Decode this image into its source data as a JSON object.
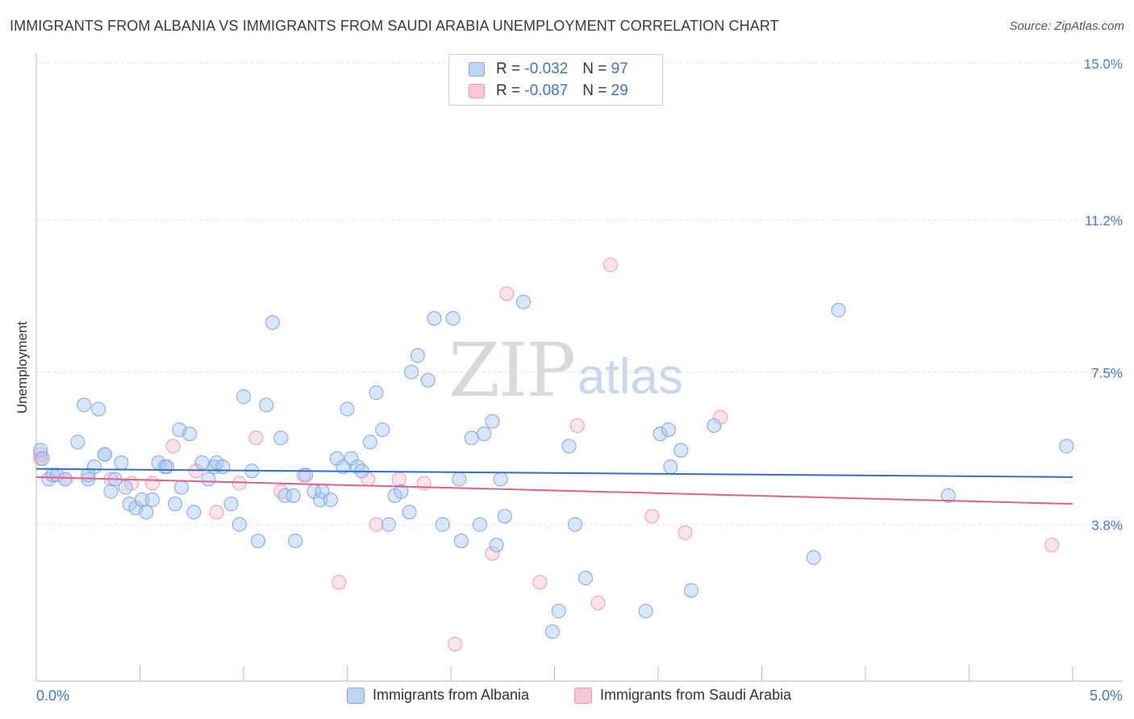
{
  "title": "IMMIGRANTS FROM ALBANIA VS IMMIGRANTS FROM SAUDI ARABIA UNEMPLOYMENT CORRELATION CHART",
  "source": "Source: ZipAtlas.com",
  "watermark": {
    "zip": "ZIP",
    "atlas": "atlas"
  },
  "legend_top": [
    {
      "r_label": "R =",
      "r_value": "-0.032",
      "n_label": "N =",
      "n_value": "97"
    },
    {
      "r_label": "R =",
      "r_value": "-0.087",
      "n_label": "N =",
      "n_value": "29"
    }
  ],
  "chart_data": {
    "type": "scatter",
    "title": "IMMIGRANTS FROM ALBANIA VS IMMIGRANTS FROM SAUDI ARABIA UNEMPLOYMENT CORRELATION CHART",
    "xlabel": "",
    "ylabel": "Unemployment",
    "xlim": [
      0,
      5.0
    ],
    "ylim": [
      0,
      15.0
    ],
    "x_tick_labels": [
      "0.0%",
      "5.0%"
    ],
    "y_ticks": [
      3.8,
      7.5,
      11.2,
      15.0
    ],
    "y_tick_labels": [
      "3.8%",
      "7.5%",
      "11.2%",
      "15.0%"
    ],
    "grid": "horizontal dashed",
    "legend_position": "bottom",
    "colors": {
      "albania": "#a9c7ef",
      "albania_line": "#2f6fcc",
      "saudi": "#f4b8cb",
      "saudi_line": "#e0608c",
      "tick_text": "#4477cc"
    },
    "series": [
      {
        "name": "Immigrants from Albania",
        "R": -0.032,
        "N": 97,
        "trend": {
          "x": [
            0,
            5.0
          ],
          "y": [
            5.15,
            4.95
          ]
        },
        "points": [
          [
            0.02,
            5.6
          ],
          [
            0.03,
            5.4
          ],
          [
            0.06,
            4.9
          ],
          [
            0.08,
            5.0
          ],
          [
            0.1,
            5.0
          ],
          [
            0.14,
            4.9
          ],
          [
            0.2,
            5.8
          ],
          [
            0.23,
            6.7
          ],
          [
            0.25,
            4.9
          ],
          [
            0.28,
            5.2
          ],
          [
            0.3,
            6.6
          ],
          [
            0.33,
            5.5
          ],
          [
            0.36,
            4.6
          ],
          [
            0.38,
            4.9
          ],
          [
            0.41,
            5.3
          ],
          [
            0.43,
            4.7
          ],
          [
            0.45,
            4.3
          ],
          [
            0.48,
            4.2
          ],
          [
            0.51,
            4.4
          ],
          [
            0.53,
            4.1
          ],
          [
            0.56,
            4.4
          ],
          [
            0.59,
            5.3
          ],
          [
            0.62,
            5.2
          ],
          [
            0.63,
            5.2
          ],
          [
            0.67,
            4.3
          ],
          [
            0.69,
            6.1
          ],
          [
            0.7,
            4.7
          ],
          [
            0.74,
            6.0
          ],
          [
            0.76,
            4.1
          ],
          [
            0.8,
            5.3
          ],
          [
            0.83,
            4.9
          ],
          [
            0.86,
            5.2
          ],
          [
            0.87,
            5.3
          ],
          [
            0.9,
            5.2
          ],
          [
            0.94,
            4.3
          ],
          [
            0.98,
            3.8
          ],
          [
            1.0,
            6.9
          ],
          [
            1.04,
            5.1
          ],
          [
            1.07,
            3.4
          ],
          [
            1.11,
            6.7
          ],
          [
            1.14,
            8.7
          ],
          [
            1.18,
            5.9
          ],
          [
            1.2,
            4.5
          ],
          [
            1.24,
            4.5
          ],
          [
            1.25,
            3.4
          ],
          [
            1.3,
            5.0
          ],
          [
            1.34,
            4.6
          ],
          [
            1.37,
            4.4
          ],
          [
            1.38,
            4.6
          ],
          [
            1.42,
            4.4
          ],
          [
            1.45,
            5.4
          ],
          [
            1.48,
            5.2
          ],
          [
            1.5,
            6.6
          ],
          [
            1.52,
            5.4
          ],
          [
            1.55,
            5.2
          ],
          [
            1.57,
            5.1
          ],
          [
            1.61,
            5.8
          ],
          [
            1.64,
            7.0
          ],
          [
            1.67,
            6.1
          ],
          [
            1.7,
            3.8
          ],
          [
            1.73,
            4.5
          ],
          [
            1.76,
            4.6
          ],
          [
            1.8,
            4.1
          ],
          [
            1.81,
            7.5
          ],
          [
            1.84,
            7.9
          ],
          [
            1.89,
            7.3
          ],
          [
            1.92,
            8.8
          ],
          [
            1.96,
            3.8
          ],
          [
            2.01,
            8.8
          ],
          [
            2.04,
            4.9
          ],
          [
            2.05,
            3.4
          ],
          [
            2.1,
            5.9
          ],
          [
            2.14,
            3.8
          ],
          [
            2.16,
            6.0
          ],
          [
            2.2,
            6.3
          ],
          [
            2.22,
            3.3
          ],
          [
            2.24,
            4.9
          ],
          [
            2.26,
            4.0
          ],
          [
            2.35,
            9.2
          ],
          [
            2.49,
            1.2
          ],
          [
            2.52,
            1.7
          ],
          [
            2.57,
            5.7
          ],
          [
            2.6,
            3.8
          ],
          [
            2.65,
            2.5
          ],
          [
            2.94,
            1.7
          ],
          [
            3.01,
            6.0
          ],
          [
            3.05,
            6.1
          ],
          [
            3.06,
            5.2
          ],
          [
            3.11,
            5.6
          ],
          [
            3.16,
            2.2
          ],
          [
            3.27,
            6.2
          ],
          [
            3.75,
            3.0
          ],
          [
            3.87,
            9.0
          ],
          [
            4.4,
            4.5
          ],
          [
            4.97,
            5.7
          ],
          [
            0.25,
            5.0
          ],
          [
            0.33,
            5.5
          ]
        ]
      },
      {
        "name": "Immigrants from Saudi Arabia",
        "R": -0.087,
        "N": 29,
        "trend": {
          "x": [
            0,
            5.0
          ],
          "y": [
            4.95,
            4.3
          ]
        },
        "points": [
          [
            0.02,
            5.4
          ],
          [
            0.14,
            4.9
          ],
          [
            0.36,
            4.9
          ],
          [
            0.46,
            4.8
          ],
          [
            0.56,
            4.8
          ],
          [
            0.66,
            5.7
          ],
          [
            0.77,
            5.1
          ],
          [
            0.87,
            4.1
          ],
          [
            0.98,
            4.8
          ],
          [
            1.06,
            5.9
          ],
          [
            1.18,
            4.6
          ],
          [
            1.29,
            5.0
          ],
          [
            1.46,
            2.4
          ],
          [
            1.6,
            4.9
          ],
          [
            1.64,
            3.8
          ],
          [
            1.75,
            4.9
          ],
          [
            1.87,
            4.8
          ],
          [
            2.02,
            0.9
          ],
          [
            2.2,
            3.1
          ],
          [
            2.27,
            9.4
          ],
          [
            2.43,
            2.4
          ],
          [
            2.61,
            6.2
          ],
          [
            2.71,
            1.9
          ],
          [
            2.77,
            10.1
          ],
          [
            2.97,
            4.0
          ],
          [
            3.13,
            3.6
          ],
          [
            3.3,
            6.4
          ],
          [
            4.9,
            3.3
          ],
          [
            0.02,
            5.5
          ]
        ]
      }
    ]
  },
  "legend_bottom": [
    "Immigrants from Albania",
    "Immigrants from Saudi Arabia"
  ]
}
